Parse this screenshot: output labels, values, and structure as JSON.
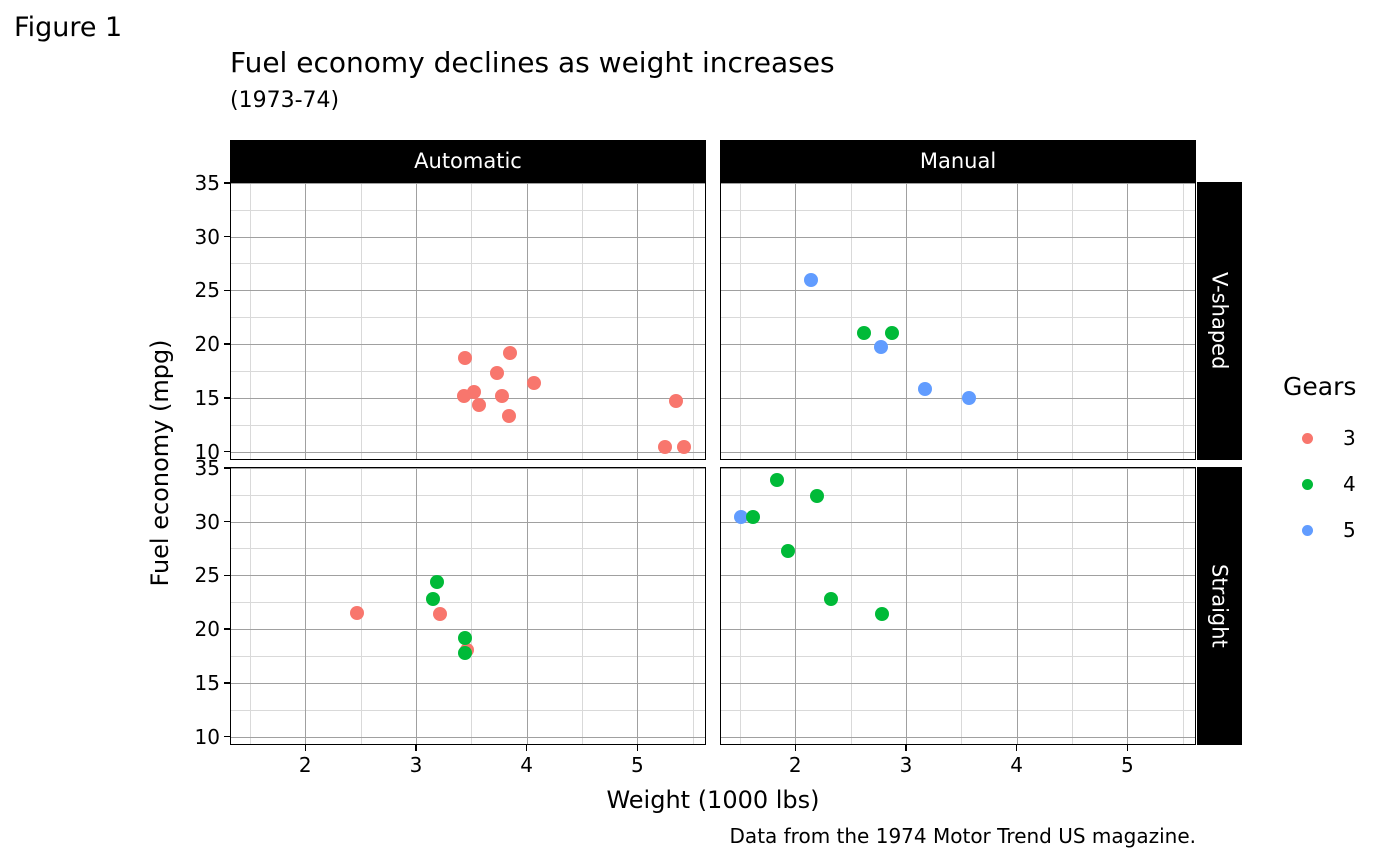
{
  "figure_tag": "Figure 1",
  "chart_data": {
    "type": "scatter",
    "title": "Fuel economy declines as weight increases",
    "subtitle": "(1973-74)",
    "caption": "Data from the 1974 Motor Trend US magazine.",
    "xlabel": "Weight (1000 lbs)",
    "ylabel": "Fuel economy (mpg)",
    "x_domain": [
      1.32,
      5.62
    ],
    "y_domain": [
      9.22,
      35.08
    ],
    "x_ticks": [
      2,
      3,
      4,
      5
    ],
    "x_minor_ticks": [
      1.5,
      2.5,
      3.5,
      4.5,
      5.5
    ],
    "y_ticks": [
      10,
      15,
      20,
      25,
      30,
      35
    ],
    "y_minor_ticks": [
      12.5,
      17.5,
      22.5,
      27.5,
      32.5
    ],
    "grid": "major and minor, gray on white",
    "facet_cols": [
      "Automatic",
      "Manual"
    ],
    "facet_rows": [
      "V-shaped",
      "Straight"
    ],
    "legend": {
      "title": "Gears",
      "position": "right",
      "items": [
        {
          "label": "3",
          "color": "#F8766D"
        },
        {
          "label": "4",
          "color": "#00BA38"
        },
        {
          "label": "5",
          "color": "#619CFF"
        }
      ]
    },
    "panels": [
      {
        "col": "Automatic",
        "row": "V-shaped",
        "points": [
          [
            3.44,
            18.7,
            "3"
          ],
          [
            3.52,
            15.5,
            "3"
          ],
          [
            3.435,
            15.2,
            "3"
          ],
          [
            3.57,
            14.3,
            "3"
          ],
          [
            3.73,
            17.3,
            "3"
          ],
          [
            3.78,
            15.2,
            "3"
          ],
          [
            3.84,
            13.3,
            "3"
          ],
          [
            3.845,
            19.2,
            "3"
          ],
          [
            4.07,
            16.4,
            "3"
          ],
          [
            5.25,
            10.4,
            "3"
          ],
          [
            5.345,
            14.7,
            "3"
          ],
          [
            5.424,
            10.4,
            "3"
          ]
        ]
      },
      {
        "col": "Manual",
        "row": "V-shaped",
        "points": [
          [
            2.62,
            21.0,
            "4"
          ],
          [
            2.875,
            21.0,
            "4"
          ],
          [
            2.14,
            26.0,
            "5"
          ],
          [
            2.77,
            19.7,
            "5"
          ],
          [
            3.17,
            15.8,
            "5"
          ],
          [
            3.57,
            15.0,
            "5"
          ]
        ]
      },
      {
        "col": "Automatic",
        "row": "Straight",
        "points": [
          [
            2.465,
            21.5,
            "3"
          ],
          [
            3.215,
            21.4,
            "3"
          ],
          [
            3.46,
            18.1,
            "3"
          ],
          [
            3.15,
            22.8,
            "4"
          ],
          [
            3.19,
            24.4,
            "4"
          ],
          [
            3.44,
            19.2,
            "4"
          ],
          [
            3.44,
            17.8,
            "4"
          ]
        ]
      },
      {
        "col": "Manual",
        "row": "Straight",
        "points": [
          [
            2.2,
            32.4,
            "4"
          ],
          [
            1.835,
            33.9,
            "4"
          ],
          [
            1.513,
            30.4,
            "5"
          ],
          [
            1.615,
            30.4,
            "4"
          ],
          [
            1.935,
            27.3,
            "4"
          ],
          [
            2.32,
            22.8,
            "4"
          ],
          [
            2.78,
            21.4,
            "4"
          ]
        ]
      }
    ]
  }
}
